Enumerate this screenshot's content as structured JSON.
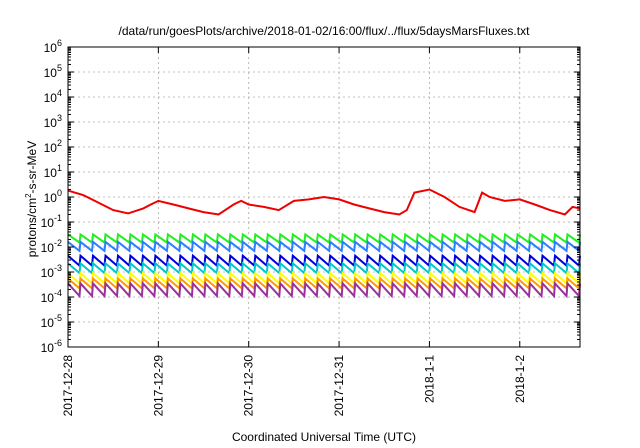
{
  "chart_data": {
    "type": "line",
    "title": "/data/run/goesPlots/archive/2018-01-02/16:00/flux/../flux/5daysMarsFluxes.txt",
    "xlabel": "Coordinated Universal Time (UTC)",
    "ylabel": "protons/cm²-s-sr-MeV",
    "ylabel_parts": {
      "a": "protons/cm",
      "sup": "2",
      "b": "-s-sr-MeV"
    },
    "xscale": "time",
    "yscale": "log",
    "xlim": [
      "2017-12-28 00:00",
      "2018-01-02 16:00"
    ],
    "ylim": [
      1e-06,
      1000000.0
    ],
    "grid": true,
    "legend": "none",
    "x_ticks": [
      {
        "value": "2017-12-28",
        "label": "2017-12-28"
      },
      {
        "value": "2017-12-29",
        "label": "2017-12-29"
      },
      {
        "value": "2017-12-30",
        "label": "2017-12-30"
      },
      {
        "value": "2017-12-31",
        "label": "2017-12-31"
      },
      {
        "value": "2018-01-01",
        "label": "2018-1-1"
      },
      {
        "value": "2018-01-02",
        "label": "2018-1-2"
      }
    ],
    "y_ticks": [
      {
        "value": 1e-06,
        "base": "10",
        "exp": "-6"
      },
      {
        "value": 1e-05,
        "base": "10",
        "exp": "-5"
      },
      {
        "value": 0.0001,
        "base": "10",
        "exp": "-4"
      },
      {
        "value": 0.001,
        "base": "10",
        "exp": "-3"
      },
      {
        "value": 0.01,
        "base": "10",
        "exp": "-2"
      },
      {
        "value": 0.1,
        "base": "10",
        "exp": "-1"
      },
      {
        "value": 1.0,
        "base": "10",
        "exp": "0"
      },
      {
        "value": 10.0,
        "base": "10",
        "exp": "1"
      },
      {
        "value": 100.0,
        "base": "10",
        "exp": "2"
      },
      {
        "value": 1000.0,
        "base": "10",
        "exp": "3"
      },
      {
        "value": 10000.0,
        "base": "10",
        "exp": "4"
      },
      {
        "value": 100000.0,
        "base": "10",
        "exp": "5"
      },
      {
        "value": 1000000.0,
        "base": "10",
        "exp": "6"
      }
    ],
    "series": [
      {
        "color": "#ee0000",
        "x": [
          "2017-12-28 00:00",
          "2017-12-28 04:00",
          "2017-12-28 08:00",
          "2017-12-28 12:00",
          "2017-12-28 16:00",
          "2017-12-28 20:00",
          "2017-12-28 22:00",
          "2017-12-29 00:00",
          "2017-12-29 04:00",
          "2017-12-29 08:00",
          "2017-12-29 12:00",
          "2017-12-29 16:00",
          "2017-12-29 20:00",
          "2017-12-29 22:00",
          "2017-12-30 00:00",
          "2017-12-30 04:00",
          "2017-12-30 08:00",
          "2017-12-30 12:00",
          "2017-12-30 16:00",
          "2017-12-30 20:00",
          "2017-12-31 00:00",
          "2017-12-31 04:00",
          "2017-12-31 08:00",
          "2017-12-31 12:00",
          "2017-12-31 16:00",
          "2017-12-31 18:00",
          "2017-12-31 20:00",
          "2018-01-01 00:00",
          "2018-01-01 04:00",
          "2018-01-01 08:00",
          "2018-01-01 12:00",
          "2018-01-01 14:00",
          "2018-01-01 16:00",
          "2018-01-01 20:00",
          "2018-01-02 00:00",
          "2018-01-02 04:00",
          "2018-01-02 08:00",
          "2018-01-02 12:00",
          "2018-01-02 14:00",
          "2018-01-02 16:00"
        ],
        "y": [
          1.8,
          1.2,
          0.6,
          0.3,
          0.22,
          0.35,
          0.5,
          0.7,
          0.5,
          0.35,
          0.25,
          0.2,
          0.5,
          0.7,
          0.5,
          0.4,
          0.3,
          0.7,
          0.8,
          1.0,
          0.8,
          0.5,
          0.35,
          0.25,
          0.2,
          0.3,
          1.5,
          2.0,
          1.0,
          0.4,
          0.25,
          1.5,
          1.0,
          0.7,
          0.8,
          0.5,
          0.3,
          0.2,
          0.4,
          0.35
        ]
      },
      {
        "color": "#22ee22",
        "x_start": "2017-12-28 00:00",
        "x_end": "2018-01-02 16:00",
        "cycles": 41,
        "y_peak": 0.032,
        "y_trough": 0.015
      },
      {
        "color": "#2a7fff",
        "x_start": "2017-12-28 00:00",
        "x_end": "2018-01-02 16:00",
        "cycles": 41,
        "y_peak": 0.016,
        "y_trough": 0.007
      },
      {
        "color": "#0000dd",
        "x_start": "2017-12-28 00:00",
        "x_end": "2018-01-02 16:00",
        "cycles": 41,
        "y_peak": 0.0045,
        "y_trough": 0.0018
      },
      {
        "color": "#00c8c8",
        "x_start": "2017-12-28 00:00",
        "x_end": "2018-01-02 16:00",
        "cycles": 41,
        "y_peak": 0.0022,
        "y_trough": 0.0009
      },
      {
        "color": "#ffff00",
        "x_start": "2017-12-28 00:00",
        "x_end": "2018-01-02 16:00",
        "cycles": 41,
        "y_peak": 0.0009,
        "y_trough": 0.00035
      },
      {
        "color": "#ff9900",
        "x_start": "2017-12-28 00:00",
        "x_end": "2018-01-02 16:00",
        "cycles": 41,
        "y_peak": 0.00055,
        "y_trough": 0.00022
      },
      {
        "color": "#993399",
        "x_start": "2017-12-28 00:00",
        "x_end": "2018-01-02 16:00",
        "cycles": 41,
        "y_peak": 0.00035,
        "y_trough": 0.00011
      }
    ]
  }
}
